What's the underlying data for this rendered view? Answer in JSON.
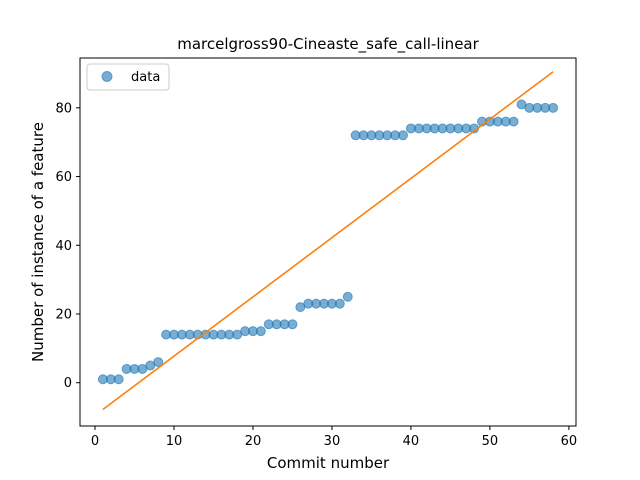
{
  "chart_data": {
    "type": "scatter",
    "title": "marcelgross90-Cineaste_safe_call-linear",
    "xlabel": "Commit number",
    "ylabel": "Number of instance of a feature",
    "xlim": [
      -1.9,
      60.9
    ],
    "ylim": [
      -12.6,
      94.5
    ],
    "xticks": [
      0,
      10,
      20,
      30,
      40,
      50,
      60
    ],
    "yticks": [
      0,
      20,
      40,
      60,
      80
    ],
    "legend_position": "upper left",
    "grid": false,
    "series": [
      {
        "name": "data",
        "kind": "scatter",
        "color": "#1f77b4",
        "x": [
          1,
          2,
          3,
          4,
          5,
          6,
          7,
          8,
          9,
          10,
          11,
          12,
          13,
          14,
          15,
          16,
          17,
          18,
          19,
          20,
          21,
          22,
          23,
          24,
          25,
          26,
          27,
          28,
          29,
          30,
          31,
          32,
          33,
          34,
          35,
          36,
          37,
          38,
          39,
          40,
          41,
          42,
          43,
          44,
          45,
          46,
          47,
          48,
          49,
          50,
          51,
          52,
          53,
          54,
          55,
          56,
          57,
          58
        ],
        "y": [
          1,
          1,
          1,
          4,
          4,
          4,
          5,
          6,
          14,
          14,
          14,
          14,
          14,
          14,
          14,
          14,
          14,
          14,
          15,
          15,
          15,
          17,
          17,
          17,
          17,
          22,
          23,
          23,
          23,
          23,
          23,
          25,
          72,
          72,
          72,
          72,
          72,
          72,
          72,
          74,
          74,
          74,
          74,
          74,
          74,
          74,
          74,
          74,
          76,
          76,
          76,
          76,
          76,
          81,
          80,
          80,
          80,
          80
        ]
      },
      {
        "kind": "line",
        "color": "#ff7f0e",
        "x": [
          1,
          58
        ],
        "y": [
          -7.8,
          90.5
        ]
      }
    ]
  }
}
